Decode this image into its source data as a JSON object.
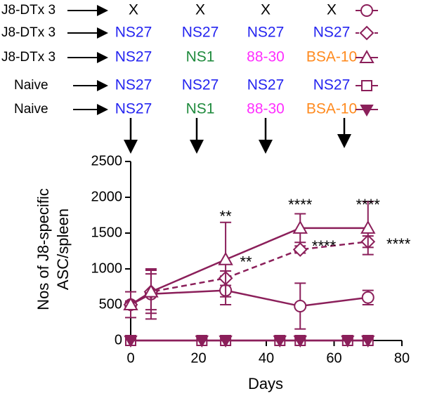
{
  "schedule": {
    "rows": [
      {
        "group": "J8-DTx 3",
        "boosts": [
          "X",
          "X",
          "X",
          "X"
        ]
      },
      {
        "group": "J8-DTx 3",
        "boosts": [
          "NS27",
          "NS27",
          "NS27",
          "NS27"
        ]
      },
      {
        "group": "J8-DTx 3",
        "boosts": [
          "NS27",
          "NS1",
          "88-30",
          "BSA-10"
        ]
      },
      {
        "group": "Naive",
        "boosts": [
          "NS27",
          "NS27",
          "NS27",
          "NS27"
        ]
      },
      {
        "group": "Naive",
        "boosts": [
          "NS27",
          "NS1",
          "88-30",
          "BSA-10"
        ]
      }
    ],
    "colors": {
      "X": "#000000",
      "NS27": "#2424f0",
      "NS1": "#1e8a3c",
      "88-30": "#ff2eff",
      "BSA-10": "#ff8a1e"
    }
  },
  "chart_data": {
    "type": "line",
    "xlabel": "Days",
    "ylabel": [
      "Nos of J8-specific",
      "ASC/spleen"
    ],
    "xlim": [
      0,
      80
    ],
    "xticks": [
      0,
      20,
      40,
      60,
      80
    ],
    "ylim": [
      0,
      2500
    ],
    "yticks": [
      0,
      500,
      1000,
      1500,
      2000,
      2500
    ],
    "series": [
      {
        "color": "#8b1f5a",
        "marker": "circle",
        "dashed": false,
        "x": [
          0,
          6,
          28,
          50,
          70
        ],
        "values": [
          500,
          650,
          700,
          480,
          600
        ],
        "errors": [
          180,
          350,
          200,
          320,
          100
        ]
      },
      {
        "color": "#8b1f5a",
        "marker": "diamond",
        "dashed": true,
        "x": [
          0,
          6,
          28,
          50,
          70
        ],
        "values": [
          500,
          680,
          870,
          1270,
          1380
        ],
        "errors": [
          50,
          300,
          100,
          50,
          80
        ]
      },
      {
        "color": "#8b1f5a",
        "marker": "triangle",
        "dashed": false,
        "x": [
          0,
          6,
          28,
          50,
          70
        ],
        "values": [
          500,
          680,
          1130,
          1570,
          1570
        ],
        "errors": [
          50,
          250,
          520,
          200,
          370
        ]
      },
      {
        "color": "#8b1f5a",
        "marker": "square",
        "dashed": false,
        "x": [
          0,
          21,
          28,
          44,
          50,
          64,
          70
        ],
        "values": [
          0,
          0,
          0,
          0,
          0,
          0,
          0
        ]
      },
      {
        "color": "#8b1f5a",
        "marker": "triangle-down-filled",
        "dashed": false,
        "x": [
          0,
          21,
          28,
          44,
          50,
          64,
          70
        ],
        "values": [
          0,
          0,
          0,
          0,
          0,
          0,
          0
        ]
      }
    ],
    "annotations": [
      {
        "text": "**",
        "x": 28,
        "y": 1720
      },
      {
        "text": "**",
        "x": 34,
        "y": 1080
      },
      {
        "text": "****",
        "x": 50,
        "y": 1880
      },
      {
        "text": "****",
        "x": 57,
        "y": 1300
      },
      {
        "text": "****",
        "x": 70,
        "y": 1880
      },
      {
        "text": "****",
        "x": 79,
        "y": 1330
      }
    ]
  }
}
